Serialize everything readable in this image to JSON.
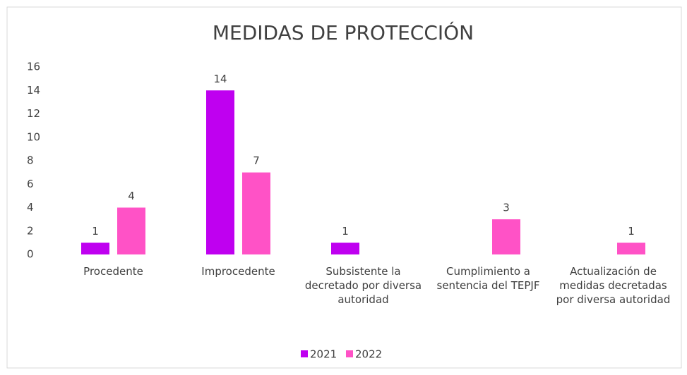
{
  "chart_data": {
    "type": "bar",
    "title": "MEDIDAS DE PROTECCIÓN",
    "categories": [
      "Procedente",
      "Improcedente",
      "Subsistente la decretado por diversa autoridad",
      "Cumplimiento a sentencia del TEPJF",
      "Actualización de medidas decretadas por diversa autoridad"
    ],
    "series": [
      {
        "name": "2021",
        "color": "#bf00f0",
        "values": [
          1,
          14,
          1,
          null,
          null
        ]
      },
      {
        "name": "2022",
        "color": "#ff52c6",
        "values": [
          4,
          7,
          null,
          3,
          1
        ]
      }
    ],
    "ylim": [
      0,
      16
    ],
    "yticks": [
      0,
      2,
      4,
      6,
      8,
      10,
      12,
      14,
      16
    ],
    "grid": false,
    "legend": "bottom"
  }
}
